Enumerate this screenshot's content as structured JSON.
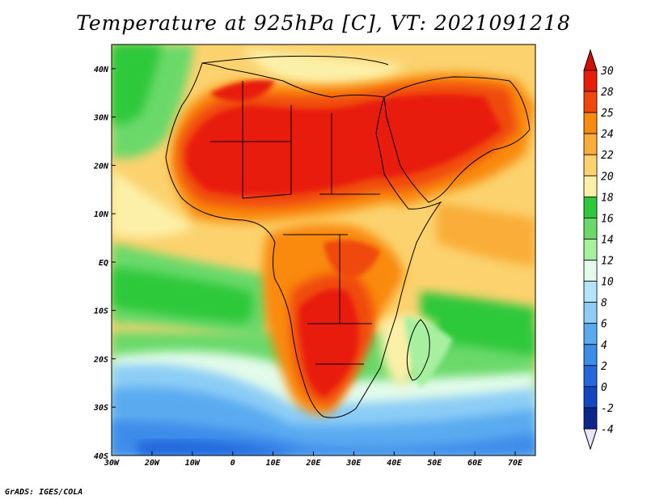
{
  "title": "Temperature at 925hPa [C], VT: 2021091218",
  "credit": "GrADS: IGES/COLA",
  "map": {
    "lon_range": [
      -30,
      75
    ],
    "lat_range": [
      -40,
      45
    ],
    "lon_ticks": [
      {
        "v": -30,
        "label": "30W"
      },
      {
        "v": -20,
        "label": "20W"
      },
      {
        "v": -10,
        "label": "10W"
      },
      {
        "v": 0,
        "label": "0"
      },
      {
        "v": 10,
        "label": "10E"
      },
      {
        "v": 20,
        "label": "20E"
      },
      {
        "v": 30,
        "label": "30E"
      },
      {
        "v": 40,
        "label": "40E"
      },
      {
        "v": 50,
        "label": "50E"
      },
      {
        "v": 60,
        "label": "60E"
      },
      {
        "v": 70,
        "label": "70E"
      }
    ],
    "lat_ticks": [
      {
        "v": 40,
        "label": "40N"
      },
      {
        "v": 30,
        "label": "30N"
      },
      {
        "v": 20,
        "label": "20N"
      },
      {
        "v": 10,
        "label": "10N"
      },
      {
        "v": 0,
        "label": "EQ"
      },
      {
        "v": -10,
        "label": "10S"
      },
      {
        "v": -20,
        "label": "20S"
      },
      {
        "v": -30,
        "label": "30S"
      },
      {
        "v": -40,
        "label": "40S"
      }
    ]
  },
  "colorbar": {
    "levels": [
      "30",
      "28",
      "25",
      "24",
      "22",
      "20",
      "18",
      "16",
      "14",
      "12",
      "10",
      "8",
      "6",
      "4",
      "2",
      "0",
      "-2",
      "-4"
    ],
    "colors": [
      "#e81e0a",
      "#f0480c",
      "#f98a10",
      "#faad38",
      "#fbd26e",
      "#fcf0a8",
      "#2fc83a",
      "#6ad96a",
      "#a6f0a0",
      "#e2fbea",
      "#b4e4fa",
      "#8ccdf6",
      "#5aaaf0",
      "#3c8cea",
      "#2468dc",
      "#1446c2",
      "#0c268c"
    ],
    "top_color": "#d20e04",
    "bottom_color": "#e6e4fe"
  }
}
